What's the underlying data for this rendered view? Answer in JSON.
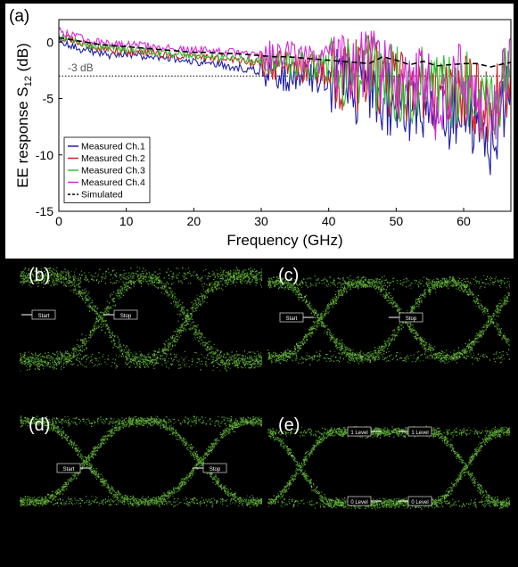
{
  "chart_data": [
    {
      "type": "line",
      "panel_label": "(a)",
      "xlabel": "Frequency (GHz)",
      "ylabel_main": "EE response S",
      "ylabel_sub": "12",
      "ylabel_unit": " (dB)",
      "xlim": [
        0,
        67
      ],
      "ylim": [
        -15,
        2
      ],
      "xticks": [
        0,
        10,
        20,
        30,
        40,
        50,
        60
      ],
      "yticks": [
        0,
        -5,
        -10,
        -15
      ],
      "grid": false,
      "legend_position": "bottom-left",
      "reference_line": {
        "y": -3,
        "label": "-3 dB",
        "style": "dotted"
      },
      "x": [
        0,
        2,
        4,
        6,
        8,
        10,
        12,
        14,
        16,
        18,
        20,
        22,
        24,
        26,
        28,
        30,
        32,
        34,
        36,
        38,
        40,
        42,
        44,
        46,
        48,
        50,
        52,
        54,
        56,
        58,
        60,
        62,
        64,
        66,
        67
      ],
      "series": [
        {
          "name": "Measured Ch.1",
          "color": "#1f1fa8",
          "style": "solid",
          "values": [
            0.3,
            -0.4,
            -0.7,
            -1.0,
            -1.2,
            -1.1,
            -1.2,
            -1.3,
            -1.4,
            -1.6,
            -1.8,
            -1.9,
            -2.0,
            -2.2,
            -2.4,
            -2.6,
            -2.8,
            -3.0,
            -3.0,
            -3.2,
            -3.5,
            -3.7,
            -4.0,
            -4.0,
            -4.8,
            -5.2,
            -6.0,
            -5.5,
            -7.0,
            -6.5,
            -5.5,
            -7.2,
            -8.5,
            -5.5,
            -4.5
          ]
        },
        {
          "name": "Measured Ch.2",
          "color": "#d42020",
          "style": "solid",
          "values": [
            0.6,
            0.2,
            -0.2,
            -0.5,
            -0.7,
            -0.8,
            -0.9,
            -1.0,
            -1.1,
            -1.2,
            -1.3,
            -1.4,
            -1.5,
            -1.6,
            -1.8,
            -1.9,
            -2.0,
            -2.2,
            -2.3,
            -2.4,
            -2.6,
            -2.8,
            -3.0,
            -2.6,
            -3.6,
            -4.0,
            -4.6,
            -4.0,
            -5.0,
            -4.6,
            -4.2,
            -5.2,
            -6.0,
            -4.0,
            -3.8
          ]
        },
        {
          "name": "Measured Ch.3",
          "color": "#2fbf2f",
          "style": "solid",
          "values": [
            0.5,
            0.1,
            -0.2,
            -0.4,
            -0.6,
            -0.7,
            -0.8,
            -0.9,
            -1.0,
            -1.1,
            -1.2,
            -1.3,
            -1.4,
            -1.5,
            -1.6,
            -1.8,
            -1.9,
            -2.0,
            -2.1,
            -2.2,
            -2.4,
            -2.6,
            -2.9,
            -2.4,
            -3.3,
            -3.7,
            -4.3,
            -3.7,
            -4.7,
            -4.4,
            -3.9,
            -4.8,
            -5.6,
            -3.8,
            -3.6
          ]
        },
        {
          "name": "Measured Ch.4",
          "color": "#d62ad6",
          "style": "solid",
          "values": [
            1.0,
            0.6,
            0.2,
            0.0,
            -0.1,
            -0.2,
            -0.3,
            -0.4,
            -0.5,
            -0.6,
            -0.7,
            -0.7,
            -0.8,
            -0.9,
            -1.0,
            -1.1,
            -1.2,
            -1.3,
            -1.4,
            -1.5,
            -1.7,
            -1.9,
            -2.1,
            -1.8,
            -2.8,
            -3.4,
            -4.5,
            -3.4,
            -5.6,
            -3.6,
            -3.0,
            -6.0,
            -7.2,
            -3.2,
            -3.0
          ]
        },
        {
          "name": "Simulated",
          "color": "#000000",
          "style": "dashed",
          "values": [
            0.4,
            0.2,
            0.0,
            -0.2,
            -0.3,
            -0.4,
            -0.5,
            -0.6,
            -0.7,
            -0.8,
            -0.9,
            -0.9,
            -1.0,
            -1.0,
            -1.1,
            -1.2,
            -1.3,
            -1.3,
            -1.4,
            -1.5,
            -1.6,
            -1.7,
            -1.8,
            -1.9,
            -1.3,
            -1.6,
            -2.0,
            -1.7,
            -2.1,
            -2.0,
            -1.9,
            -1.9,
            -2.2,
            -1.9,
            -1.8
          ]
        }
      ]
    },
    {
      "type": "eye-diagram",
      "panel_label": "(b)",
      "crossings": 2,
      "markers": [
        {
          "text": "Start"
        },
        {
          "text": "Stop"
        }
      ]
    },
    {
      "type": "eye-diagram",
      "panel_label": "(c)",
      "crossings": 2,
      "markers": [
        {
          "text": "Start"
        },
        {
          "text": "Stop"
        }
      ]
    },
    {
      "type": "eye-diagram",
      "panel_label": "(d)",
      "crossings": 2,
      "markers": [
        {
          "text": "Start"
        },
        {
          "text": "Stop"
        }
      ]
    },
    {
      "type": "eye-diagram",
      "panel_label": "(e)",
      "crossings": 2,
      "markers": [
        {
          "text": "1 Level"
        },
        {
          "text": "1 Level"
        },
        {
          "text": "0 Level"
        },
        {
          "text": "0 Level"
        }
      ]
    }
  ]
}
